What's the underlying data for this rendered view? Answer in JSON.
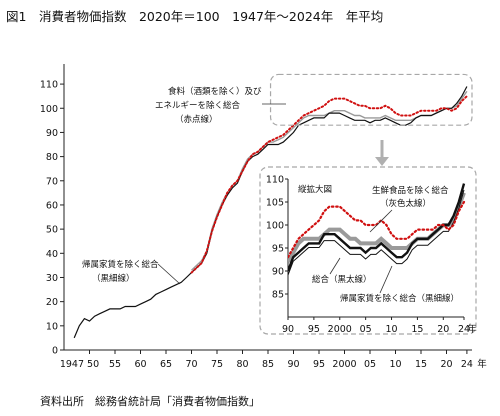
{
  "header": {
    "title": "図1　消費者物価指数　2020年＝100　1947年〜2024年　年平均"
  },
  "footer": {
    "source": "資料出所　総務省統計局「消費者物価指数」"
  },
  "colors": {
    "total": "#111111",
    "core": "#9a9a9a",
    "coreCore": "#d01010",
    "frame": "#a8a8a8",
    "inset_bg": "#ffffff"
  },
  "chart_data": [
    {
      "type": "line",
      "title": "",
      "xlabel": "年",
      "ylabel": "",
      "xlim": [
        1945,
        2025
      ],
      "ylim": [
        0,
        115
      ],
      "x_ticks": [
        1950,
        1955,
        1960,
        1965,
        1970,
        1975,
        1980,
        1985,
        1990,
        1995,
        2000,
        2005,
        2010,
        2015,
        2020,
        2024
      ],
      "x_tick_labels": [
        "1947 50",
        "55",
        "60",
        "65",
        "70",
        "75",
        "80",
        "85",
        "90",
        "95",
        "2000",
        "05",
        "10",
        "15",
        "20",
        "24"
      ],
      "x_unit": "年",
      "y_ticks": [
        0,
        10,
        20,
        30,
        40,
        50,
        60,
        70,
        80,
        90,
        100,
        110
      ],
      "y_tick_labels": [
        "0",
        "10",
        "20",
        "30",
        "40",
        "50",
        "60",
        "70",
        "80",
        "90",
        "100",
        "110"
      ],
      "grid": false,
      "series": [
        {
          "key": "total",
          "x": [
            1947,
            1948,
            1949,
            1950,
            1951,
            1952,
            1953,
            1954,
            1955,
            1956,
            1957,
            1958,
            1959,
            1960,
            1961,
            1962,
            1963,
            1964,
            1965,
            1966,
            1967,
            1968,
            1969,
            1970,
            1971,
            1972,
            1973,
            1974,
            1975,
            1976,
            1977,
            1978,
            1979,
            1980,
            1981,
            1982,
            1983,
            1984,
            1985,
            1986,
            1987,
            1988,
            1989,
            1990,
            1991,
            1992,
            1993,
            1994,
            1995,
            1996,
            1997,
            1998,
            1999,
            2000,
            2001,
            2002,
            2003,
            2004,
            2005,
            2006,
            2007,
            2008,
            2009,
            2010,
            2011,
            2012,
            2013,
            2014,
            2015,
            2016,
            2017,
            2018,
            2019,
            2020,
            2021,
            2022,
            2023,
            2024
          ],
          "y": [
            5,
            10,
            13,
            12,
            14,
            15,
            16,
            17,
            17,
            17,
            18,
            18,
            18,
            19,
            20,
            21,
            23,
            24,
            25,
            26,
            27,
            28,
            30,
            32,
            34,
            36,
            40,
            49,
            55,
            60,
            64,
            67,
            69,
            74,
            78,
            80,
            81,
            83,
            85,
            85,
            85,
            86,
            88,
            90,
            93,
            94,
            95,
            96,
            96,
            96,
            98,
            98,
            98,
            97,
            96,
            95,
            95,
            95,
            94,
            95,
            95,
            96,
            95,
            94,
            93,
            93,
            94,
            96,
            97,
            97,
            97,
            98,
            99,
            100,
            100,
            102,
            105,
            109
          ]
        },
        {
          "key": "core",
          "x": [
            1970,
            1971,
            1972,
            1973,
            1974,
            1975,
            1976,
            1977,
            1978,
            1979,
            1980,
            1981,
            1982,
            1983,
            1984,
            1985,
            1986,
            1987,
            1988,
            1989,
            1990,
            1991,
            1992,
            1993,
            1994,
            1995,
            1996,
            1997,
            1998,
            1999,
            2000,
            2001,
            2002,
            2003,
            2004,
            2005,
            2006,
            2007,
            2008,
            2009,
            2010,
            2011,
            2012,
            2013,
            2014,
            2015,
            2016,
            2017,
            2018,
            2019,
            2020,
            2021,
            2022,
            2023,
            2024
          ],
          "y": [
            33,
            35,
            37,
            41,
            50,
            56,
            61,
            65,
            68,
            70,
            75,
            79,
            81,
            82,
            84,
            86,
            86,
            87,
            88,
            90,
            92,
            94,
            96,
            97,
            97,
            97,
            97,
            98,
            99,
            99,
            99,
            98,
            97,
            97,
            96,
            96,
            96,
            96,
            97,
            96,
            95,
            95,
            95,
            95,
            96,
            97,
            97,
            97,
            98,
            99,
            100,
            100,
            101,
            104,
            107
          ]
        },
        {
          "key": "coreCore",
          "x": [
            1970,
            1971,
            1972,
            1973,
            1974,
            1975,
            1976,
            1977,
            1978,
            1979,
            1980,
            1981,
            1982,
            1983,
            1984,
            1985,
            1986,
            1987,
            1988,
            1989,
            1990,
            1991,
            1992,
            1993,
            1994,
            1995,
            1996,
            1997,
            1998,
            1999,
            2000,
            2001,
            2002,
            2003,
            2004,
            2005,
            2006,
            2007,
            2008,
            2009,
            2010,
            2011,
            2012,
            2013,
            2014,
            2015,
            2016,
            2017,
            2018,
            2019,
            2020,
            2021,
            2022,
            2023,
            2024
          ],
          "y": [
            32,
            34,
            36,
            41,
            49,
            55,
            60,
            65,
            68,
            70,
            74,
            78,
            81,
            82,
            84,
            86,
            87,
            88,
            89,
            91,
            93,
            95,
            97,
            98,
            99,
            100,
            101,
            103,
            104,
            104,
            104,
            103,
            102,
            101,
            101,
            100,
            100,
            100,
            101,
            100,
            98,
            97,
            97,
            97,
            98,
            99,
            99,
            99,
            99,
            100,
            100,
            99,
            100,
            103,
            105
          ]
        }
      ],
      "annotations": [
        {
          "lines": [
            "食料（酒類を除く）及び",
            "エネルギーを除く総合",
            "（赤点線）"
          ]
        },
        {
          "lines": [
            "帰属家賃を除く総合",
            "（黒細線）"
          ]
        }
      ]
    },
    {
      "type": "line",
      "title": "縦拡大図",
      "xlim": [
        1990,
        2024
      ],
      "ylim": [
        80,
        110
      ],
      "x_ticks": [
        1990,
        1995,
        2000,
        2005,
        2010,
        2015,
        2020,
        2024
      ],
      "x_tick_labels": [
        "90",
        "95",
        "2000",
        "05",
        "10",
        "15",
        "20",
        "24"
      ],
      "x_unit": "年",
      "y_ticks": [
        85,
        90,
        95,
        100,
        105,
        110
      ],
      "y_tick_labels": [
        "85",
        "90",
        "95",
        "100",
        "105",
        "110"
      ],
      "legend": [
        {
          "key": "core",
          "label": "生鮮食品を除く総合",
          "sub": "（灰色太線）"
        },
        {
          "key": "total",
          "label": "総合（黒太線）"
        },
        {
          "key": "excl_rent",
          "label": "帰属家賃を除く総合（黒細線）"
        }
      ]
    }
  ]
}
